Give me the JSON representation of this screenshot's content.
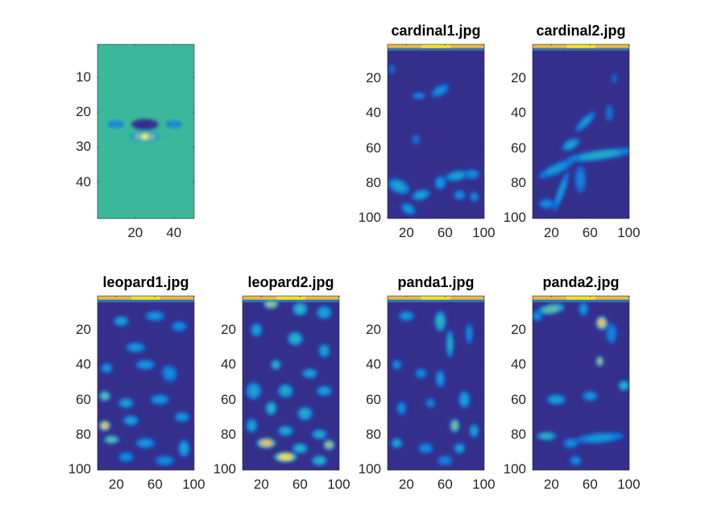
{
  "chart_data": [
    {
      "type": "heatmap",
      "title": "",
      "size": 50,
      "xticks": [
        20,
        40
      ],
      "yticks": [
        10,
        20,
        30,
        40
      ],
      "background": "#3bb89c",
      "top_band": false,
      "blobs": [
        [
          25,
          23.5,
          7,
          1.6,
          0.05,
          0
        ],
        [
          25,
          23.5,
          3,
          1.3,
          0.0,
          0
        ],
        [
          25,
          27,
          8,
          1.6,
          0.85,
          0
        ],
        [
          25,
          27,
          3.5,
          1.2,
          1.0,
          0
        ],
        [
          10,
          23.5,
          4,
          1,
          0.45,
          0
        ],
        [
          40,
          23.5,
          4,
          1,
          0.45,
          0
        ]
      ]
    },
    {
      "type": "heatmap",
      "title": "cardinal1.jpg",
      "size": 100,
      "xticks": [
        20,
        60,
        100
      ],
      "yticks": [
        20,
        40,
        60,
        80,
        100
      ],
      "background": "#352f8c",
      "top_band": true,
      "blobs": [
        [
          33,
          30,
          7,
          2,
          0.4,
          0
        ],
        [
          55,
          27,
          10,
          3,
          0.4,
          -30
        ],
        [
          5,
          15,
          3,
          3,
          0.3,
          0
        ],
        [
          30,
          55,
          4,
          3,
          0.3,
          0
        ],
        [
          12,
          82,
          12,
          4,
          0.5,
          25
        ],
        [
          35,
          87,
          10,
          3,
          0.5,
          -15
        ],
        [
          55,
          80,
          6,
          4,
          0.45,
          0
        ],
        [
          72,
          76,
          12,
          3,
          0.5,
          -10
        ],
        [
          88,
          75,
          8,
          3,
          0.4,
          0
        ],
        [
          75,
          87,
          6,
          3,
          0.4,
          0
        ],
        [
          22,
          95,
          8,
          3,
          0.45,
          30
        ],
        [
          90,
          88,
          5,
          3,
          0.35,
          0
        ]
      ]
    },
    {
      "type": "heatmap",
      "title": "cardinal2.jpg",
      "size": 100,
      "xticks": [
        20,
        60,
        100
      ],
      "yticks": [
        20,
        40,
        60,
        80,
        100
      ],
      "background": "#352f8c",
      "top_band": true,
      "blobs": [
        [
          70,
          64,
          35,
          3,
          0.55,
          -8
        ],
        [
          40,
          58,
          10,
          3,
          0.5,
          -30
        ],
        [
          55,
          45,
          14,
          2.5,
          0.45,
          -45
        ],
        [
          25,
          72,
          20,
          3,
          0.45,
          -25
        ],
        [
          30,
          85,
          4,
          12,
          0.45,
          20
        ],
        [
          50,
          78,
          6,
          8,
          0.35,
          0
        ],
        [
          80,
          40,
          4,
          5,
          0.3,
          0
        ],
        [
          85,
          20,
          3,
          3,
          0.25,
          0
        ],
        [
          15,
          92,
          8,
          3,
          0.4,
          0
        ]
      ]
    },
    {
      "type": "heatmap",
      "title": "leopard1.jpg",
      "size": 100,
      "xticks": [
        20,
        60,
        100
      ],
      "yticks": [
        20,
        40,
        60,
        80,
        100
      ],
      "background": "#352f8c",
      "top_band": true,
      "blobs": [
        [
          25,
          15,
          8,
          3,
          0.5,
          0
        ],
        [
          60,
          12,
          10,
          3,
          0.45,
          0
        ],
        [
          85,
          18,
          8,
          3,
          0.4,
          0
        ],
        [
          40,
          30,
          10,
          3,
          0.45,
          0
        ],
        [
          10,
          42,
          6,
          3,
          0.45,
          0
        ],
        [
          50,
          40,
          10,
          3,
          0.45,
          0
        ],
        [
          75,
          45,
          8,
          5,
          0.4,
          -30
        ],
        [
          8,
          58,
          6,
          3,
          0.7,
          0
        ],
        [
          30,
          62,
          8,
          3,
          0.5,
          0
        ],
        [
          65,
          60,
          10,
          3,
          0.45,
          0
        ],
        [
          8,
          75,
          6,
          3,
          0.9,
          0
        ],
        [
          35,
          72,
          8,
          3,
          0.5,
          0
        ],
        [
          88,
          70,
          8,
          3,
          0.45,
          0
        ],
        [
          15,
          83,
          8,
          2.5,
          0.7,
          0
        ],
        [
          50,
          85,
          10,
          3,
          0.45,
          0
        ],
        [
          90,
          88,
          6,
          5,
          0.5,
          0
        ],
        [
          30,
          93,
          8,
          3,
          0.4,
          0
        ],
        [
          70,
          95,
          10,
          3,
          0.4,
          0
        ]
      ]
    },
    {
      "type": "heatmap",
      "title": "leopard2.jpg",
      "size": 100,
      "xticks": [
        20,
        60,
        100
      ],
      "yticks": [
        20,
        40,
        60,
        80,
        100
      ],
      "background": "#352f8c",
      "top_band": true,
      "blobs": [
        [
          30,
          5,
          8,
          3,
          0.8,
          0
        ],
        [
          60,
          8,
          8,
          4,
          0.6,
          0
        ],
        [
          85,
          10,
          8,
          4,
          0.5,
          0
        ],
        [
          15,
          20,
          6,
          4,
          0.5,
          0
        ],
        [
          55,
          25,
          8,
          4,
          0.6,
          0
        ],
        [
          85,
          32,
          6,
          4,
          0.5,
          0
        ],
        [
          35,
          40,
          5,
          3,
          0.6,
          0
        ],
        [
          70,
          45,
          8,
          3,
          0.5,
          0
        ],
        [
          12,
          55,
          8,
          5,
          0.5,
          0
        ],
        [
          45,
          55,
          8,
          4,
          0.55,
          0
        ],
        [
          85,
          55,
          8,
          3,
          0.5,
          0
        ],
        [
          30,
          65,
          6,
          4,
          0.6,
          0
        ],
        [
          65,
          68,
          8,
          4,
          0.55,
          0
        ],
        [
          10,
          75,
          6,
          4,
          0.5,
          0
        ],
        [
          45,
          78,
          8,
          3,
          0.55,
          0
        ],
        [
          80,
          80,
          8,
          3,
          0.55,
          0
        ],
        [
          25,
          85,
          10,
          3,
          0.9,
          0
        ],
        [
          60,
          88,
          8,
          3,
          0.6,
          0
        ],
        [
          90,
          86,
          6,
          3,
          0.8,
          0
        ],
        [
          45,
          93,
          12,
          3,
          0.95,
          0
        ],
        [
          80,
          95,
          8,
          3,
          0.6,
          0
        ]
      ]
    },
    {
      "type": "heatmap",
      "title": "panda1.jpg",
      "size": 100,
      "xticks": [
        20,
        60,
        100
      ],
      "yticks": [
        20,
        40,
        60,
        80,
        100
      ],
      "background": "#352f8c",
      "top_band": true,
      "blobs": [
        [
          20,
          12,
          8,
          3,
          0.45,
          0
        ],
        [
          55,
          15,
          6,
          6,
          0.6,
          0
        ],
        [
          65,
          28,
          4,
          8,
          0.55,
          0
        ],
        [
          85,
          22,
          4,
          6,
          0.4,
          0
        ],
        [
          10,
          40,
          5,
          3,
          0.4,
          0
        ],
        [
          35,
          45,
          6,
          3,
          0.4,
          0
        ],
        [
          55,
          48,
          5,
          5,
          0.45,
          0
        ],
        [
          15,
          65,
          5,
          4,
          0.4,
          0
        ],
        [
          45,
          62,
          5,
          3,
          0.35,
          0
        ],
        [
          80,
          60,
          6,
          5,
          0.5,
          0
        ],
        [
          70,
          75,
          5,
          4,
          0.75,
          0
        ],
        [
          90,
          78,
          5,
          4,
          0.5,
          0
        ],
        [
          10,
          85,
          6,
          3,
          0.5,
          0
        ],
        [
          40,
          88,
          8,
          3,
          0.4,
          0
        ],
        [
          75,
          88,
          6,
          3,
          0.5,
          0
        ],
        [
          60,
          95,
          8,
          3,
          0.35,
          0
        ]
      ]
    },
    {
      "type": "heatmap",
      "title": "panda2.jpg",
      "size": 100,
      "xticks": [
        20,
        60,
        100
      ],
      "yticks": [
        20,
        40,
        60,
        80,
        100
      ],
      "background": "#352f8c",
      "top_band": true,
      "blobs": [
        [
          20,
          8,
          14,
          3,
          0.7,
          -10
        ],
        [
          5,
          12,
          6,
          3,
          0.4,
          0
        ],
        [
          53,
          8,
          5,
          4,
          0.45,
          0
        ],
        [
          72,
          16,
          6,
          4,
          0.9,
          0
        ],
        [
          82,
          22,
          6,
          6,
          0.35,
          0
        ],
        [
          70,
          38,
          4,
          3,
          0.8,
          0
        ],
        [
          95,
          52,
          6,
          3,
          0.6,
          0
        ],
        [
          25,
          60,
          10,
          3,
          0.5,
          0
        ],
        [
          60,
          58,
          8,
          3,
          0.45,
          0
        ],
        [
          15,
          81,
          10,
          2.5,
          0.6,
          0
        ],
        [
          40,
          85,
          8,
          3,
          0.4,
          0
        ],
        [
          70,
          82,
          25,
          3,
          0.45,
          -5
        ],
        [
          45,
          95,
          6,
          3,
          0.4,
          0
        ]
      ]
    }
  ]
}
